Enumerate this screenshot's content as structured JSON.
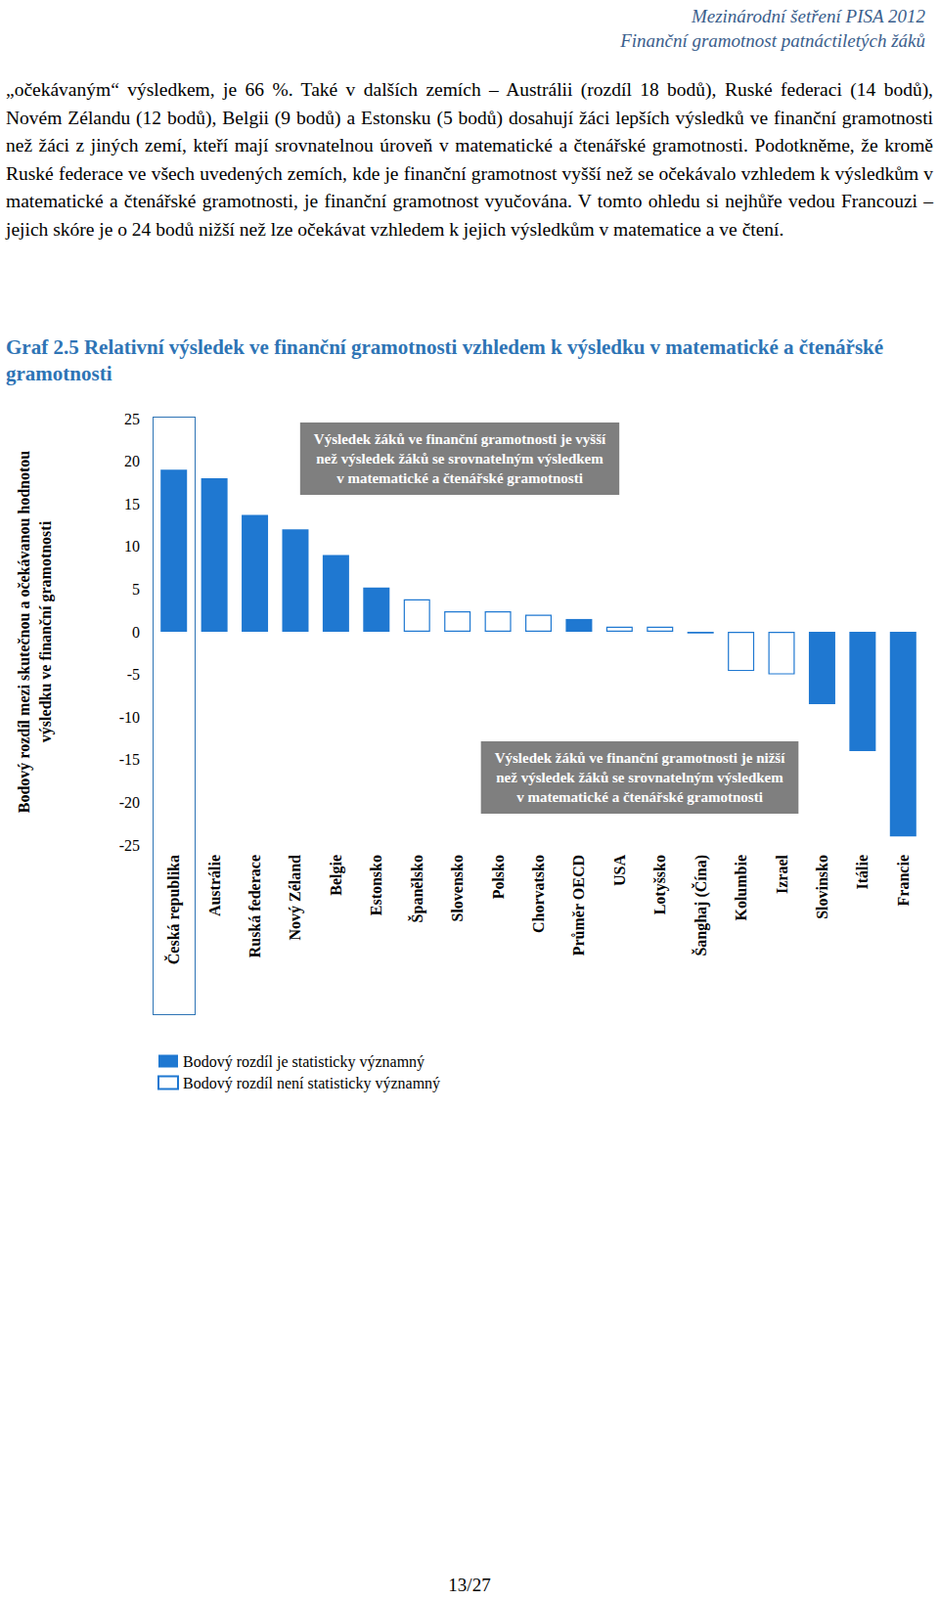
{
  "header": [
    "Mezinárodní šetření PISA 2012",
    "Finanční gramotnost patnáctiletých žáků"
  ],
  "paragraph": "„očekávaným“ výsledkem, je 66 %. Také v dalších zemích – Austrálii (rozdíl 18 bodů), Ruské federaci (14 bodů), Novém Zélandu (12 bodů), Belgii (9 bodů) a Estonsku (5 bodů) dosahují žáci lepších výsledků ve finanční gramotnosti než žáci z jiných zemí, kteří mají srovnatelnou úroveň v matematické a čtenářské gramotnosti. Podotkněme, že kromě Ruské federace ve všech uvedených zemích, kde je finanční gramotnost vyšší než se očekávalo vzhledem k výsledkům v matematické a čtenářské gramotnosti, je finanční gramotnost vyučována. V tomto ohledu si nejhůře vedou Francouzi – jejich skóre je o 24 bodů nižší než lze očekávat vzhledem k jejich výsledkům v matematice a ve čtení.",
  "page_number": "13/27",
  "chart_data": {
    "type": "bar",
    "title": "Graf 2.5 Relativní výsledek ve finanční gramotnosti vzhledem k výsledku v matematické a čtenářské gramotnosti",
    "y_label": "Bodový rozdíl mezi skutečnou a očekávanou hodnotou\nvýsledku ve finanční gramotnosti",
    "categories": [
      "Česká republika",
      "Austrálie",
      "Ruská federace",
      "Nový Zéland",
      "Belgie",
      "Estonsko",
      "Španělsko",
      "Slovensko",
      "Polsko",
      "Chorvatsko",
      "Průměr OECD",
      "USA",
      "Lotyšsko",
      "Šanghaj (Čína)",
      "Kolumbie",
      "Izrael",
      "Slovinsko",
      "Itálie",
      "Francie"
    ],
    "series": [
      {
        "name": "Bodový rozdíl je statisticky významný",
        "color": "#1f78d1",
        "values": [
          19,
          18,
          13.7,
          12,
          9,
          5.2,
          null,
          null,
          null,
          null,
          1.5,
          null,
          null,
          null,
          null,
          null,
          -8.5,
          -14,
          -24
        ]
      },
      {
        "name": "Bodový rozdíl není statisticky významný",
        "color": "#ffffff",
        "values": [
          null,
          null,
          null,
          null,
          null,
          null,
          3.8,
          2.4,
          2.4,
          2,
          null,
          0.6,
          0.6,
          -0.2,
          -4.6,
          -5,
          null,
          null,
          null
        ]
      }
    ],
    "ylim": [
      -25,
      25
    ],
    "yticks": [
      -25,
      -20,
      -15,
      -10,
      -5,
      0,
      5,
      10,
      15,
      20,
      25
    ],
    "grid": false,
    "legend": "bottom-left",
    "annotations": [
      "Výsledek žáků ve finanční gramotnosti je vyšší\nnež výsledek žáků se srovnatelným výsledkem\nv matematické a čtenářské gramotnosti",
      "Výsledek žáků ve finanční gramotnosti je nižší\nnež výsledek žáků se srovnatelným výsledkem\nv matematické a čtenářské gramotnosti"
    ]
  }
}
